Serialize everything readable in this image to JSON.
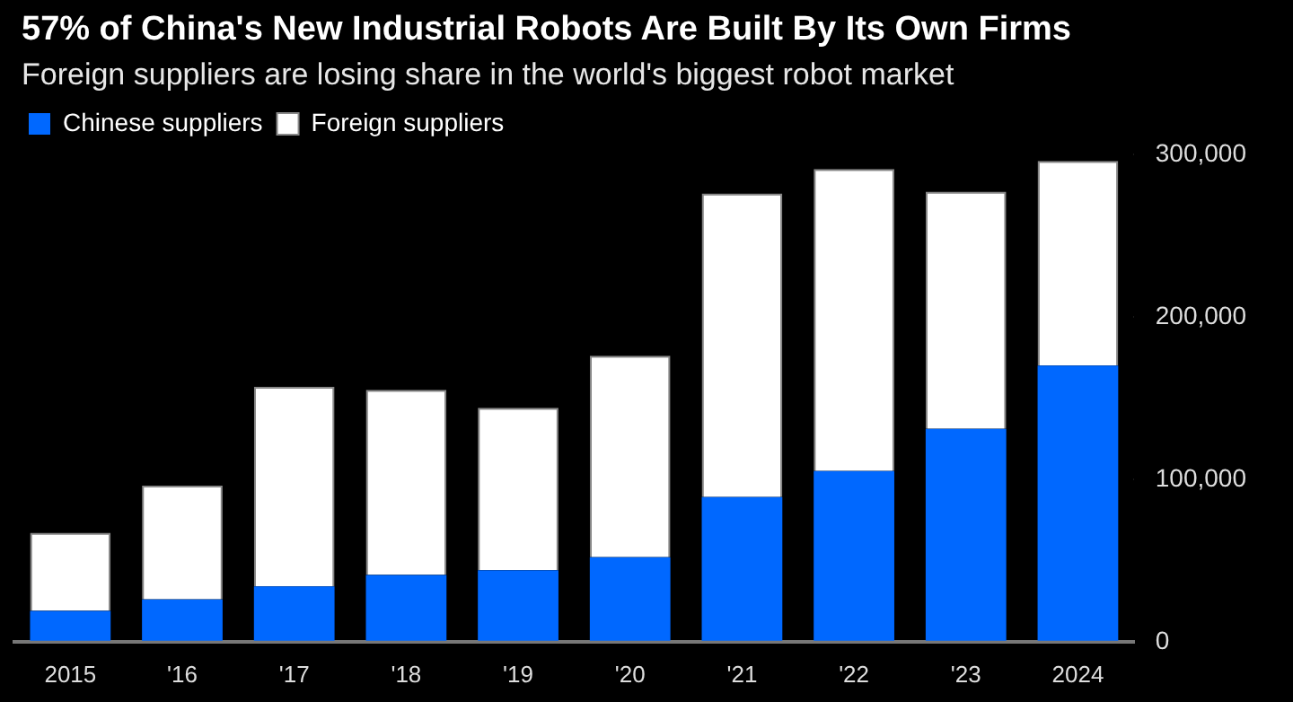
{
  "chart_data": {
    "type": "bar",
    "title": "57% of China's New Industrial Robots Are Built By Its Own Firms",
    "subtitle": "Foreign suppliers are losing share in the world's biggest robot market",
    "categories": [
      "2015",
      "'16",
      "'17",
      "'18",
      "'19",
      "'20",
      "'21",
      "'22",
      "'23",
      "2024"
    ],
    "stacked": true,
    "legend": "top left",
    "grid": false,
    "ylim": [
      0,
      300000
    ],
    "yticks": [
      {
        "value": 0,
        "label": "0"
      },
      {
        "value": 100000,
        "label": "100,000"
      },
      {
        "value": 200000,
        "label": "200,000"
      },
      {
        "value": 300000,
        "label": "300,000"
      }
    ],
    "series": [
      {
        "name": "Chinese suppliers",
        "color": "#0068ff",
        "values": [
          19000,
          26000,
          34000,
          41000,
          44000,
          52000,
          89000,
          105000,
          131000,
          170000
        ]
      },
      {
        "name": "Foreign suppliers",
        "color": "#ffffff",
        "values": [
          48000,
          70000,
          123000,
          114000,
          100000,
          124000,
          187000,
          186000,
          146000,
          126000
        ]
      }
    ]
  }
}
